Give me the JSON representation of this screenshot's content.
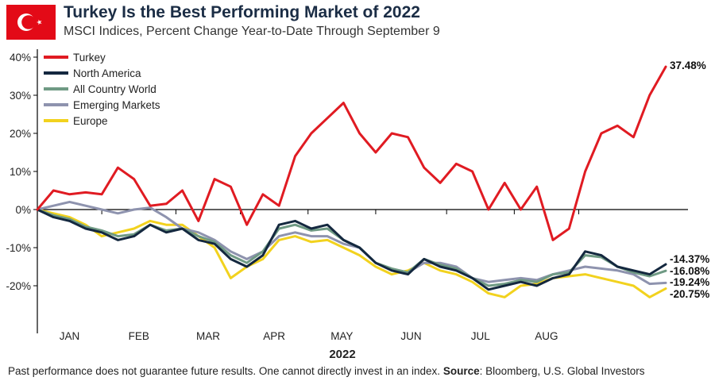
{
  "header": {
    "title": "Turkey Is the Best Performing Market of 2022",
    "subtitle": "MSCI Indices, Percent Change Year-to-Date Through September 9"
  },
  "footnote": {
    "text": "Past performance does not guarantee future results. One cannot directly invest in an index.",
    "source_label": "Source",
    "source_text": ": Bloomberg, U.S. Global Investors"
  },
  "flag": {
    "icon": "turkey-flag-icon",
    "color": "#e30a17"
  },
  "chart_data": {
    "type": "line",
    "xlabel": "2022",
    "ylabel": "",
    "ylim": [
      -30,
      42
    ],
    "y_ticks": [
      40,
      30,
      20,
      10,
      0,
      -10,
      -20
    ],
    "y_tick_labels": [
      "40%",
      "30%",
      "20%",
      "10%",
      "0%",
      "-10%",
      "-20%"
    ],
    "x_tick_labels": [
      "JAN",
      "FEB",
      "MAR",
      "APR",
      "MAY",
      "JUN",
      "JUL",
      "AUG"
    ],
    "x_tick_weeks": [
      4,
      8.6,
      12.6,
      16.8,
      21,
      25.4,
      29.6,
      33.6
    ],
    "legend_position": "top-left",
    "series": [
      {
        "name": "Turkey",
        "color": "#e01b22",
        "end_label": "37.48%",
        "values": [
          0,
          5,
          4,
          4.5,
          4,
          11,
          8,
          1,
          1.5,
          5,
          -3,
          8,
          6,
          -4,
          4,
          1,
          14,
          20,
          24,
          28,
          20,
          15,
          20,
          19,
          11,
          7,
          12,
          10,
          0,
          7,
          0,
          6,
          -8,
          -5,
          10,
          20,
          22,
          19,
          30,
          37.48
        ]
      },
      {
        "name": "North America",
        "color": "#14283f",
        "end_label": "-14.37%",
        "values": [
          0,
          -2,
          -3,
          -5,
          -6,
          -8,
          -7,
          -4,
          -6,
          -5,
          -8,
          -9,
          -13,
          -15,
          -12,
          -4,
          -3,
          -5,
          -4,
          -8,
          -10,
          -14,
          -16,
          -17,
          -13,
          -15,
          -16,
          -18,
          -21,
          -20,
          -19,
          -20,
          -18,
          -17,
          -11,
          -12,
          -15,
          -16,
          -17,
          -14.37
        ]
      },
      {
        "name": "All Country World",
        "color": "#6f9a84",
        "end_label": "-16.08%",
        "values": [
          0,
          -1.5,
          -2.5,
          -4.5,
          -5.5,
          -7,
          -6.5,
          -4,
          -5.5,
          -5,
          -7,
          -8.5,
          -12,
          -14,
          -11,
          -5,
          -4,
          -5.5,
          -5,
          -8,
          -10,
          -14,
          -15.5,
          -16.5,
          -13,
          -14.5,
          -15.5,
          -18,
          -20,
          -19.5,
          -18.5,
          -19,
          -17,
          -16.5,
          -12,
          -12.5,
          -15,
          -16.5,
          -17.5,
          -16.08
        ]
      },
      {
        "name": "Emerging Markets",
        "color": "#8e93ae",
        "end_label": "-19.24%",
        "values": [
          0,
          1,
          2,
          1,
          0,
          -1,
          0,
          0.5,
          -2,
          -5,
          -6,
          -8,
          -11,
          -13,
          -11,
          -7,
          -6,
          -7,
          -7,
          -9,
          -10,
          -14,
          -16,
          -16.5,
          -14,
          -14,
          -15,
          -18,
          -19,
          -18.5,
          -18,
          -18.5,
          -17,
          -16,
          -15,
          -15.5,
          -16,
          -17,
          -19.5,
          -19.24
        ]
      },
      {
        "name": "Europe",
        "color": "#f2d21e",
        "end_label": "-20.75%",
        "values": [
          0,
          -1,
          -2,
          -4,
          -7,
          -6,
          -5,
          -3,
          -4,
          -4,
          -7,
          -10,
          -18,
          -15,
          -13,
          -8,
          -7,
          -8.5,
          -8,
          -10,
          -12,
          -15,
          -17,
          -16,
          -14,
          -16,
          -17,
          -19,
          -22,
          -23,
          -20,
          -19.5,
          -18,
          -17.5,
          -17,
          -18,
          -19,
          -20,
          -23,
          -20.75
        ]
      }
    ]
  }
}
